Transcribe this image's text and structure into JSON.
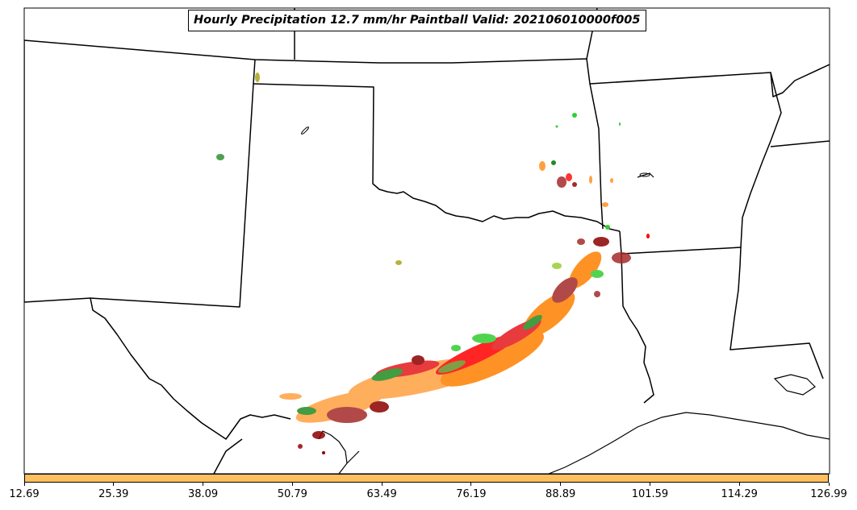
{
  "title": "Hourly Precipitation 12.7 mm/hr Paintball Valid: 202106010000f005",
  "colorbar": {
    "color": "#fdbf5f",
    "ticks": [
      "12.69",
      "25.39",
      "38.09",
      "50.79",
      "63.49",
      "76.19",
      "88.89",
      "101.59",
      "114.29",
      "126.99"
    ]
  },
  "colors": {
    "background": "#ffffff",
    "boundary": "#000000",
    "member_colors": [
      "#ff7f00",
      "#ffa040",
      "#ff0000",
      "#e31a1c",
      "#8b0000",
      "#a52a2a",
      "#228b22",
      "#32cd32",
      "#6b8e23",
      "#9acd32",
      "#b8860b"
    ]
  }
}
